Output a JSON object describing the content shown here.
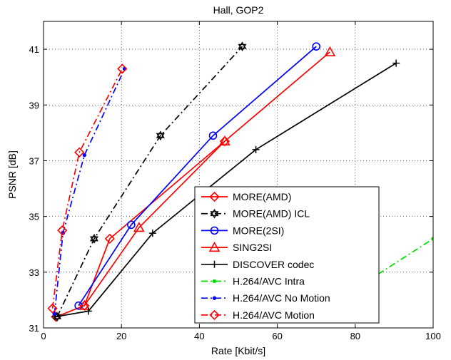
{
  "chart_data": {
    "type": "line",
    "title": "Hall, GOP2",
    "xlabel": "Rate [Kbit/s]",
    "ylabel": "PSNR [dB]",
    "xlim": [
      0,
      100
    ],
    "ylim": [
      31,
      42
    ],
    "x_ticks": [
      0,
      20,
      40,
      60,
      80,
      100
    ],
    "y_ticks": [
      31,
      33,
      35,
      37,
      39,
      41
    ],
    "x_tick_labels": [
      "0",
      "20",
      "40",
      "60",
      "80",
      "100"
    ],
    "y_tick_labels": [
      "31",
      "33",
      "35",
      "37",
      "39",
      "41"
    ],
    "grid": true,
    "grid_style": "dotted",
    "legend_position": "inside-right",
    "series": [
      {
        "name": "MORE(AMD)",
        "color": "#ff0000",
        "dash": "solid",
        "marker": "diamond",
        "x": [
          3.2,
          10.5,
          17.0,
          46.5
        ],
        "y": [
          31.4,
          31.8,
          34.2,
          37.7
        ]
      },
      {
        "name": "MORE(AMD) ICL",
        "color": "#000000",
        "dash": "dashdot",
        "marker": "hexagram",
        "x": [
          3.5,
          13.0,
          30.0,
          51.0
        ],
        "y": [
          31.4,
          34.2,
          37.9,
          41.1
        ]
      },
      {
        "name": "MORE(2SI)",
        "color": "#0000ff",
        "dash": "solid",
        "marker": "circle",
        "x": [
          9.0,
          22.5,
          43.5,
          70.0
        ],
        "y": [
          31.8,
          34.7,
          37.9,
          41.1
        ]
      },
      {
        "name": "SING2SI",
        "color": "#ff0000",
        "dash": "solid",
        "marker": "triangle",
        "x": [
          10.5,
          24.5,
          46.5,
          73.5
        ],
        "y": [
          31.8,
          34.6,
          37.7,
          40.9
        ]
      },
      {
        "name": "DISCOVER codec",
        "color": "#000000",
        "dash": "solid",
        "marker": "plus",
        "x": [
          3.0,
          11.5,
          28.0,
          54.5,
          90.5
        ],
        "y": [
          31.4,
          31.6,
          34.4,
          37.4,
          40.5
        ]
      },
      {
        "name": "H.264/AVC Intra",
        "color": "#00dd00",
        "dash": "dashdot",
        "marker": "point",
        "x": [
          80.0,
          100.0
        ],
        "y": [
          32.4,
          34.2
        ]
      },
      {
        "name": "H.264/AVC No Motion",
        "color": "#0000ff",
        "dash": "dashdot",
        "marker": "point",
        "x": [
          2.8,
          5.0,
          10.5,
          20.8
        ],
        "y": [
          31.5,
          34.4,
          37.2,
          40.3
        ]
      },
      {
        "name": "H.264/AVC Motion",
        "color": "#ff0000",
        "dash": "dashdot",
        "marker": "diamond",
        "x": [
          2.3,
          4.8,
          9.2,
          20.2
        ],
        "y": [
          31.7,
          34.5,
          37.3,
          40.3
        ]
      }
    ]
  }
}
